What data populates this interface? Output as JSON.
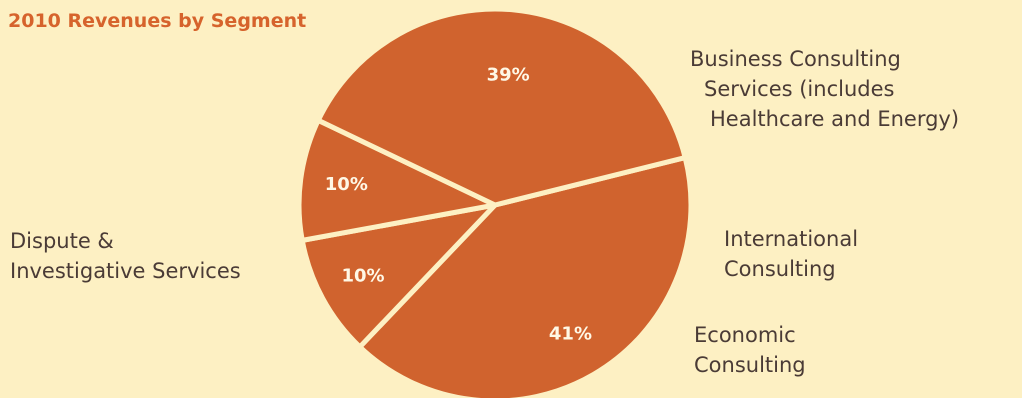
{
  "chart_data": {
    "type": "pie",
    "title": "2010 Revenues by Segment",
    "slice_color": "#d0632e",
    "separator_color": "#fdf0c3",
    "background_color": "#fdf0c3",
    "title_color": "#d6632c",
    "categories": [
      "Business Consulting Services (includes Healthcare and Energy)",
      "International Consulting",
      "Economic Consulting",
      "Dispute & Investigative Services"
    ],
    "values": [
      41,
      10,
      10,
      39
    ],
    "data_labels": [
      "41%",
      "10%",
      "10%",
      "39%"
    ],
    "category_label_lines": [
      [
        "Business Consulting",
        "Services (includes",
        "Healthcare and Energy)"
      ],
      [
        "International",
        "Consulting"
      ],
      [
        "Economic",
        "Consulting"
      ],
      [
        "Dispute &",
        "Investigative Services"
      ]
    ]
  }
}
